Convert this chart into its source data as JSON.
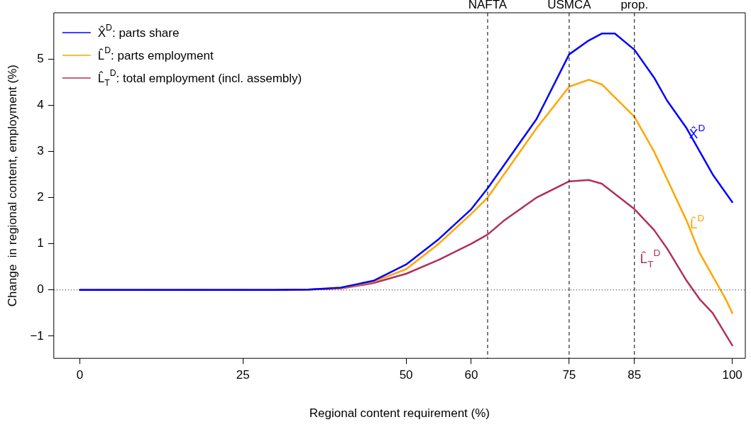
{
  "chart_data": {
    "type": "line",
    "xlabel": "Regional content requirement (%)",
    "ylabel": "Change  in regional content, employment (%)",
    "xlim": [
      -4,
      102
    ],
    "xticks": [
      0,
      25,
      50,
      60,
      75,
      85,
      100
    ],
    "ylim": [
      -1.48,
      6.0
    ],
    "yticks": [
      -1,
      0,
      1,
      2,
      3,
      4,
      5
    ],
    "grid": false,
    "legend": "top left",
    "marker": "none",
    "line_style": "solid",
    "series": [
      {
        "name": "X̂$^{D}$: parts share",
        "color": "#0000ff",
        "x": [
          0,
          30,
          35,
          40,
          45,
          50,
          55,
          60,
          62.5,
          65,
          70,
          75,
          78,
          80,
          82,
          85,
          88,
          90,
          93,
          95,
          97,
          100
        ],
        "values": [
          0,
          0,
          0.01,
          0.05,
          0.2,
          0.55,
          1.1,
          1.75,
          2.2,
          2.7,
          3.7,
          5.1,
          5.4,
          5.55,
          5.55,
          5.2,
          4.6,
          4.1,
          3.5,
          3.0,
          2.5,
          1.9
        ]
      },
      {
        "name": "L̂$^{D}$: parts employment",
        "color": "#ffa500",
        "x": [
          32,
          35,
          40,
          45,
          50,
          55,
          60,
          62.5,
          65,
          70,
          75,
          78,
          80,
          85,
          88,
          90,
          93,
          95,
          97,
          99,
          100
        ],
        "values": [
          0,
          0.01,
          0.04,
          0.18,
          0.45,
          1.0,
          1.65,
          2.0,
          2.5,
          3.5,
          4.4,
          4.55,
          4.45,
          3.75,
          3.0,
          2.4,
          1.5,
          0.8,
          0.3,
          -0.2,
          -0.5
        ]
      },
      {
        "name": "L̂$_{T}$$^{D}$: total employment (incl. assembly)",
        "color": "#b03060",
        "x": [
          0,
          30,
          35,
          40,
          45,
          50,
          55,
          60,
          62.5,
          65,
          70,
          75,
          78,
          80,
          85,
          88,
          90,
          93,
          95,
          97,
          100
        ],
        "values": [
          0,
          0,
          0.01,
          0.03,
          0.15,
          0.35,
          0.65,
          1.0,
          1.2,
          1.5,
          2.0,
          2.35,
          2.38,
          2.3,
          1.75,
          1.3,
          0.9,
          0.2,
          -0.2,
          -0.5,
          -1.2
        ]
      }
    ],
    "ref_lines": [
      {
        "axis": "y",
        "value": 0,
        "line_style": "dotted",
        "color": "#000000"
      },
      {
        "axis": "x",
        "value": 62.5,
        "label": "NAFTA",
        "line_style": "dashed",
        "color": "#000000"
      },
      {
        "axis": "x",
        "value": 75,
        "label": "USMCA",
        "line_style": "dashed",
        "color": "#000000"
      },
      {
        "axis": "x",
        "value": 85,
        "label": "prop.",
        "line_style": "dashed",
        "color": "#000000"
      }
    ],
    "annotations": [
      {
        "text": "X̂$^{D}$",
        "x": 93.3,
        "y": 3.4
      },
      {
        "text": "L̂$^{D}$",
        "x": 93.1,
        "y": 1.45
      },
      {
        "text": "L̂$_{T}$$^{D}$",
        "x": 90.9,
        "y": 0.7
      }
    ]
  }
}
